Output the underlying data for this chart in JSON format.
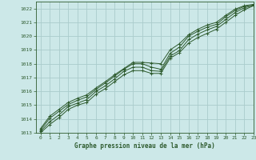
{
  "title": "Graphe pression niveau de la mer (hPa)",
  "background_color": "#cce8e8",
  "line_color": "#2d5a2d",
  "grid_color": "#aacccc",
  "xlim": [
    -0.5,
    23
  ],
  "ylim": [
    1013,
    1022.5
  ],
  "yticks": [
    1013,
    1014,
    1015,
    1016,
    1017,
    1018,
    1019,
    1020,
    1021,
    1022
  ],
  "xticks": [
    0,
    1,
    2,
    3,
    4,
    5,
    6,
    7,
    8,
    9,
    10,
    11,
    12,
    13,
    14,
    15,
    16,
    17,
    18,
    19,
    20,
    21,
    22,
    23
  ],
  "series": [
    [
      1013.0,
      1013.6,
      1014.1,
      1014.7,
      1015.0,
      1015.2,
      1015.8,
      1016.2,
      1016.7,
      1017.2,
      1017.5,
      1017.5,
      1017.3,
      1017.3,
      1018.4,
      1018.8,
      1019.5,
      1019.9,
      1020.2,
      1020.5,
      1021.0,
      1021.5,
      1021.9,
      1022.2
    ],
    [
      1013.1,
      1013.8,
      1014.3,
      1014.9,
      1015.15,
      1015.4,
      1016.0,
      1016.4,
      1016.9,
      1017.45,
      1017.75,
      1017.75,
      1017.5,
      1017.45,
      1018.55,
      1018.95,
      1019.75,
      1020.15,
      1020.45,
      1020.7,
      1021.2,
      1021.7,
      1022.05,
      1022.2
    ],
    [
      1013.2,
      1014.05,
      1014.55,
      1015.05,
      1015.35,
      1015.6,
      1016.15,
      1016.6,
      1017.1,
      1017.6,
      1018.0,
      1018.0,
      1017.75,
      1017.6,
      1018.75,
      1019.2,
      1020.0,
      1020.35,
      1020.65,
      1020.85,
      1021.4,
      1021.85,
      1022.15,
      1022.25
    ],
    [
      1013.3,
      1014.2,
      1014.7,
      1015.2,
      1015.5,
      1015.75,
      1016.25,
      1016.7,
      1017.2,
      1017.65,
      1018.1,
      1018.1,
      1018.05,
      1018.0,
      1019.0,
      1019.45,
      1020.1,
      1020.5,
      1020.8,
      1021.0,
      1021.5,
      1021.95,
      1022.2,
      1022.3
    ]
  ]
}
